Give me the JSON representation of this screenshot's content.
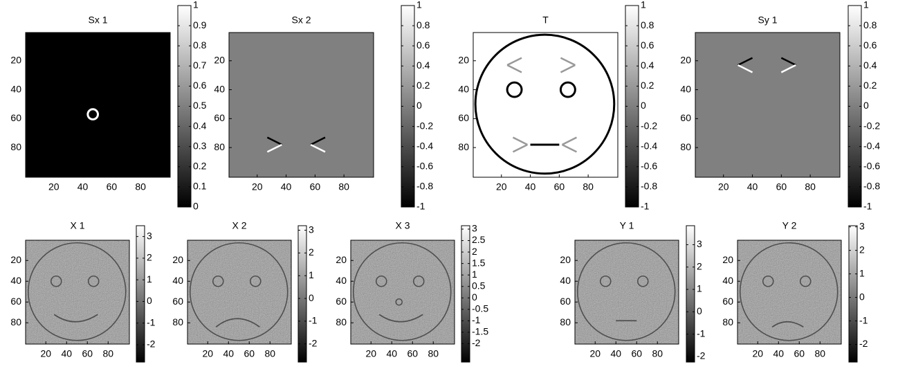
{
  "chart_data": [
    {
      "type": "image",
      "title": "Sx 1",
      "xlim": [
        0.5,
        100.5
      ],
      "ylim": [
        0.5,
        100.5
      ],
      "yreverse": true,
      "xticks": [
        20,
        40,
        60,
        80
      ],
      "yticks": [
        20,
        40,
        60,
        80
      ],
      "colorbar": {
        "lim": [
          0,
          1
        ],
        "ticks": [
          0,
          0.1,
          0.2,
          0.3,
          0.4,
          0.5,
          0.6,
          0.7,
          0.8,
          0.9,
          1
        ]
      }
    },
    {
      "type": "image",
      "title": "Sx 2",
      "xlim": [
        0.5,
        100.5
      ],
      "ylim": [
        0.5,
        100.5
      ],
      "yreverse": true,
      "xticks": [
        20,
        40,
        60,
        80
      ],
      "yticks": [
        20,
        40,
        60,
        80
      ],
      "colorbar": {
        "lim": [
          -1,
          1
        ],
        "ticks": [
          -1,
          -0.8,
          -0.6,
          -0.4,
          -0.2,
          0,
          0.2,
          0.4,
          0.6,
          0.8,
          1
        ]
      }
    },
    {
      "type": "image",
      "title": "T",
      "xlim": [
        0.5,
        100.5
      ],
      "ylim": [
        0.5,
        100.5
      ],
      "yreverse": true,
      "xticks": [
        20,
        40,
        60,
        80
      ],
      "yticks": [
        20,
        40,
        60,
        80
      ],
      "colorbar": {
        "lim": [
          -1,
          1
        ],
        "ticks": [
          -1,
          -0.8,
          -0.6,
          -0.4,
          -0.2,
          0,
          0.2,
          0.4,
          0.6,
          0.8,
          1
        ]
      }
    },
    {
      "type": "image",
      "title": "Sy 1",
      "xlim": [
        0.5,
        100.5
      ],
      "ylim": [
        0.5,
        100.5
      ],
      "yreverse": true,
      "xticks": [
        20,
        40,
        60,
        80
      ],
      "yticks": [
        20,
        40,
        60,
        80
      ],
      "colorbar": {
        "lim": [
          -1,
          1
        ],
        "ticks": [
          -1,
          -0.8,
          -0.6,
          -0.4,
          -0.2,
          0,
          0.2,
          0.4,
          0.6,
          0.8,
          1
        ]
      }
    },
    {
      "type": "image",
      "title": "X 1",
      "xlim": [
        0.5,
        100.5
      ],
      "ylim": [
        0.5,
        100.5
      ],
      "yreverse": true,
      "xticks": [
        20,
        40,
        60,
        80
      ],
      "yticks": [
        20,
        40,
        60,
        80
      ],
      "colorbar": {
        "lim": [
          -2.8,
          3.5
        ],
        "ticks": [
          -2,
          -1,
          0,
          1,
          2,
          3
        ]
      }
    },
    {
      "type": "image",
      "title": "X 2",
      "xlim": [
        0.5,
        100.5
      ],
      "ylim": [
        0.5,
        100.5
      ],
      "yreverse": true,
      "xticks": [
        20,
        40,
        60,
        80
      ],
      "yticks": [
        20,
        40,
        60,
        80
      ],
      "colorbar": {
        "lim": [
          -2.8,
          3.2
        ],
        "ticks": [
          -2,
          -1,
          0,
          1,
          2,
          3
        ]
      }
    },
    {
      "type": "image",
      "title": "X 3",
      "xlim": [
        0.5,
        100.5
      ],
      "ylim": [
        0.5,
        100.5
      ],
      "yreverse": true,
      "xticks": [
        20,
        40,
        60,
        80
      ],
      "yticks": [
        20,
        40,
        60,
        80
      ],
      "colorbar": {
        "lim": [
          -2.8,
          3.15
        ],
        "ticks": [
          -2,
          -1.5,
          -1,
          -0.5,
          0,
          0.5,
          1,
          1.5,
          2,
          2.5,
          3
        ]
      }
    },
    {
      "type": "image",
      "title": "Y 1",
      "xlim": [
        0.5,
        100.5
      ],
      "ylim": [
        0.5,
        100.5
      ],
      "yreverse": true,
      "xticks": [
        20,
        40,
        60,
        80
      ],
      "yticks": [
        20,
        40,
        60,
        80
      ],
      "colorbar": {
        "lim": [
          -2.25,
          3.85
        ],
        "ticks": [
          -2,
          -1,
          0,
          1,
          2,
          3
        ]
      }
    },
    {
      "type": "image",
      "title": "Y 2",
      "xlim": [
        0.5,
        100.5
      ],
      "ylim": [
        0.5,
        100.5
      ],
      "yreverse": true,
      "xticks": [
        20,
        40,
        60,
        80
      ],
      "yticks": [
        20,
        40,
        60,
        80
      ],
      "colorbar": {
        "lim": [
          -2.75,
          3.05
        ],
        "ticks": [
          -2,
          -1,
          0,
          1,
          2,
          3
        ]
      }
    }
  ]
}
